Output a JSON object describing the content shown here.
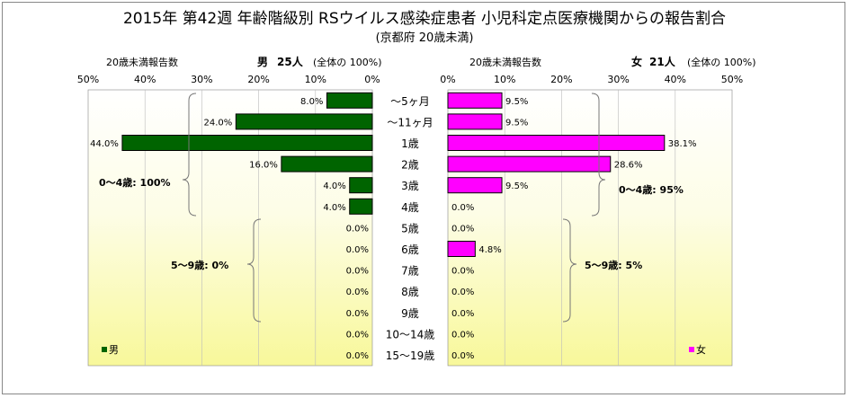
{
  "title": "2015年 第42週 年齢階級別 RSウイルス感染症患者 小児科定点医療機関からの報告割合",
  "subtitle": "(京都府 20歳未満)",
  "male_panel": {
    "header": "20歳未満報告数",
    "sex_label": "男",
    "count": "25人",
    "total_note": "(全体の 100%)",
    "summary_0_4": "0～4歳: 100%",
    "summary_5_9": "5～9歳: 0%",
    "legend": "男",
    "color": "#006400"
  },
  "female_panel": {
    "header": "20歳未満報告数",
    "sex_label": "女",
    "count": "21人",
    "total_note": "(全体の 100%)",
    "summary_0_4": "0～4歳: 95%",
    "summary_5_9": "5～9歳: 5%",
    "legend": "女",
    "color": "#FF00FF"
  },
  "chart_data": {
    "type": "bar",
    "orientation": "horizontal-butterfly",
    "categories": [
      "～5ヶ月",
      "～11ヶ月",
      "1歳",
      "2歳",
      "3歳",
      "4歳",
      "5歳",
      "6歳",
      "7歳",
      "8歳",
      "9歳",
      "10～14歳",
      "15～19歳"
    ],
    "series": [
      {
        "name": "男",
        "values": [
          8.0,
          24.0,
          44.0,
          16.0,
          4.0,
          4.0,
          0.0,
          0.0,
          0.0,
          0.0,
          0.0,
          0.0,
          0.0
        ]
      },
      {
        "name": "女",
        "values": [
          9.5,
          9.5,
          38.1,
          28.6,
          9.5,
          0.0,
          0.0,
          4.8,
          0.0,
          0.0,
          0.0,
          0.0,
          0.0
        ]
      }
    ],
    "value_labels_male": [
      "8.0%",
      "24.0%",
      "44.0%",
      "16.0%",
      "4.0%",
      "4.0%",
      "0.0%",
      "0.0%",
      "0.0%",
      "0.0%",
      "0.0%",
      "0.0%",
      "0.0%"
    ],
    "value_labels_female": [
      "9.5%",
      "9.5%",
      "38.1%",
      "28.6%",
      "9.5%",
      "0.0%",
      "0.0%",
      "4.8%",
      "0.0%",
      "0.0%",
      "0.0%",
      "0.0%",
      "0.0%"
    ],
    "xlim": [
      0,
      50
    ],
    "ticks": [
      0,
      10,
      20,
      30,
      40,
      50
    ],
    "tick_labels": [
      "0%",
      "10%",
      "20%",
      "30%",
      "40%",
      "50%"
    ],
    "legend_position": "bottom-left / bottom-right"
  }
}
